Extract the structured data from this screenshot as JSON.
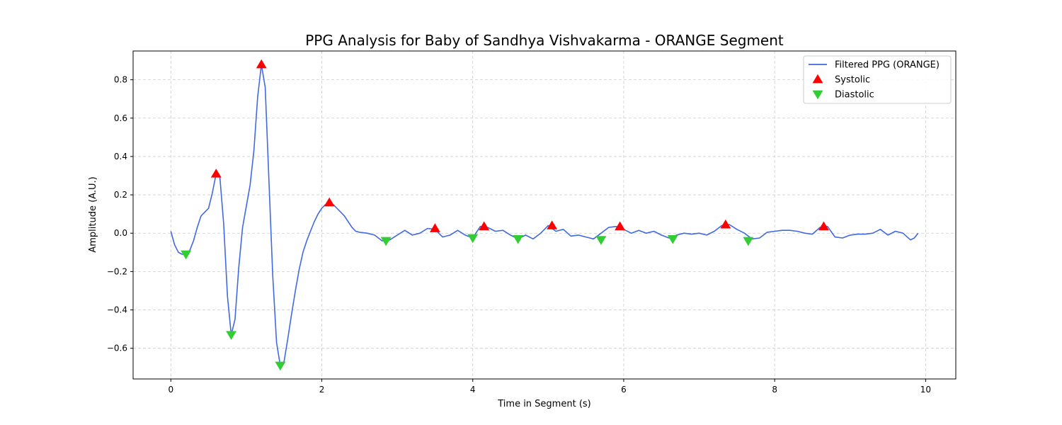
{
  "chart_data": {
    "type": "line",
    "title": "PPG Analysis for Baby of Sandhya Vishvakarma - ORANGE Segment",
    "xlabel": "Time in Segment (s)",
    "ylabel": "Amplitude (A.U.)",
    "xlim": [
      -0.5,
      10.4
    ],
    "ylim": [
      -0.76,
      0.95
    ],
    "xticks": [
      0,
      2,
      4,
      6,
      8,
      10
    ],
    "xtick_labels": [
      "0",
      "2",
      "4",
      "6",
      "8",
      "10"
    ],
    "yticks": [
      -0.6,
      -0.4,
      -0.2,
      0.0,
      0.2,
      0.4,
      0.6,
      0.8
    ],
    "ytick_labels": [
      "−0.6",
      "−0.4",
      "−0.2",
      "0.0",
      "0.2",
      "0.4",
      "0.6",
      "0.8"
    ],
    "grid": true,
    "legend_position": "top-right",
    "series": [
      {
        "name": "Filtered PPG (ORANGE)",
        "kind": "line",
        "color": "#4169e1",
        "x": [
          0,
          0.05,
          0.1,
          0.15,
          0.2,
          0.25,
          0.3,
          0.35,
          0.4,
          0.45,
          0.5,
          0.55,
          0.6,
          0.65,
          0.7,
          0.75,
          0.8,
          0.85,
          0.9,
          0.95,
          1.0,
          1.05,
          1.1,
          1.15,
          1.2,
          1.25,
          1.3,
          1.35,
          1.4,
          1.45,
          1.5,
          1.55,
          1.6,
          1.65,
          1.7,
          1.75,
          1.8,
          1.85,
          1.9,
          1.95,
          2.0,
          2.05,
          2.1,
          2.15,
          2.2,
          2.25,
          2.3,
          2.35,
          2.4,
          2.45,
          2.5,
          2.6,
          2.7,
          2.8,
          2.9,
          3.0,
          3.1,
          3.2,
          3.3,
          3.4,
          3.5,
          3.6,
          3.7,
          3.8,
          3.9,
          4.0,
          4.1,
          4.2,
          4.3,
          4.4,
          4.5,
          4.6,
          4.7,
          4.8,
          4.9,
          5.0,
          5.1,
          5.2,
          5.3,
          5.4,
          5.5,
          5.6,
          5.7,
          5.8,
          5.9,
          6.0,
          6.1,
          6.2,
          6.3,
          6.4,
          6.5,
          6.6,
          6.7,
          6.8,
          6.9,
          7.0,
          7.1,
          7.2,
          7.3,
          7.4,
          7.5,
          7.6,
          7.7,
          7.8,
          7.9,
          8.0,
          8.1,
          8.2,
          8.3,
          8.4,
          8.5,
          8.6,
          8.7,
          8.8,
          8.9,
          9.0,
          9.1,
          9.2,
          9.3,
          9.4,
          9.5,
          9.6,
          9.7,
          9.8,
          9.85,
          9.9
        ],
        "y": [
          0.01,
          -0.06,
          -0.1,
          -0.11,
          -0.11,
          -0.09,
          -0.04,
          0.03,
          0.09,
          0.11,
          0.13,
          0.21,
          0.31,
          0.29,
          0.05,
          -0.33,
          -0.53,
          -0.45,
          -0.18,
          0.03,
          0.14,
          0.25,
          0.43,
          0.71,
          0.88,
          0.76,
          0.27,
          -0.22,
          -0.57,
          -0.69,
          -0.67,
          -0.55,
          -0.42,
          -0.3,
          -0.19,
          -0.1,
          -0.04,
          0.01,
          0.06,
          0.1,
          0.13,
          0.15,
          0.16,
          0.15,
          0.13,
          0.11,
          0.09,
          0.06,
          0.03,
          0.01,
          0.005,
          0.0,
          -0.01,
          -0.04,
          -0.035,
          -0.01,
          0.015,
          -0.01,
          0.0,
          0.025,
          0.02,
          -0.02,
          -0.01,
          0.015,
          -0.01,
          -0.025,
          0.035,
          0.03,
          0.01,
          0.015,
          -0.01,
          -0.03,
          -0.01,
          -0.03,
          0.0,
          0.04,
          0.01,
          0.02,
          -0.015,
          -0.01,
          -0.02,
          -0.03,
          0.0,
          0.03,
          0.035,
          0.02,
          0.0,
          0.015,
          0.0,
          0.01,
          -0.01,
          -0.025,
          -0.01,
          0.0,
          -0.005,
          0.0,
          -0.01,
          0.01,
          0.04,
          0.045,
          0.02,
          0.0,
          -0.03,
          -0.025,
          0.005,
          0.01,
          0.015,
          0.015,
          0.01,
          0.0,
          -0.005,
          0.03,
          0.035,
          -0.02,
          -0.025,
          -0.01,
          -0.005,
          -0.005,
          0.0,
          0.02,
          -0.01,
          0.01,
          0.0,
          -0.035,
          -0.025,
          0.0
        ]
      },
      {
        "name": "Systolic",
        "kind": "scatter",
        "marker": "triangle-up",
        "color": "#ff0000",
        "x": [
          0.6,
          1.2,
          2.1,
          3.5,
          4.15,
          5.05,
          5.95,
          7.35,
          8.65
        ],
        "y": [
          0.31,
          0.88,
          0.16,
          0.025,
          0.035,
          0.04,
          0.035,
          0.045,
          0.035
        ]
      },
      {
        "name": "Diastolic",
        "kind": "scatter",
        "marker": "triangle-down",
        "color": "#32cd32",
        "x": [
          0.2,
          0.8,
          1.45,
          2.85,
          4.0,
          4.6,
          5.7,
          6.65,
          7.65
        ],
        "y": [
          -0.11,
          -0.53,
          -0.69,
          -0.04,
          -0.025,
          -0.03,
          -0.035,
          -0.03,
          -0.04
        ]
      }
    ]
  }
}
